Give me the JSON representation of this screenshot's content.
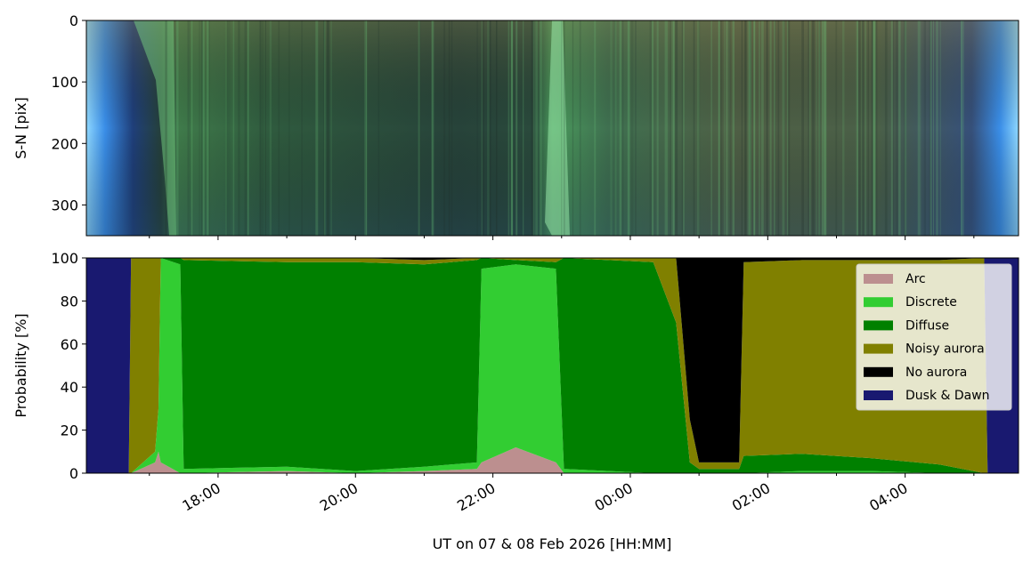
{
  "chart_data": [
    {
      "type": "heatmap",
      "title": "",
      "ylabel": "S-N [pix]",
      "ylim": [
        350,
        0
      ],
      "yticks": [
        0,
        100,
        200,
        300
      ],
      "xlim": [
        "2026-02-07T16:05",
        "2026-02-08T05:39"
      ],
      "description_of_colors": "keogram image: blue twilight at both edges, green aurora bands, brownish-olive tint 00:00-04:00"
    },
    {
      "type": "area",
      "stacked": true,
      "ylabel": "Probability [%]",
      "xlabel": "UT on 07 & 08 Feb 2026 [HH:MM]",
      "ylim": [
        0,
        100
      ],
      "yticks": [
        0,
        20,
        40,
        60,
        80,
        100
      ],
      "xlim": [
        "2026-02-07T16:05",
        "2026-02-08T05:39"
      ],
      "xticks": [
        "2026-02-07T18:00",
        "2026-02-07T20:00",
        "2026-02-07T22:00",
        "2026-02-08T00:00",
        "2026-02-08T02:00",
        "2026-02-08T04:00"
      ],
      "xticklabels": [
        "18:00",
        "20:00",
        "22:00",
        "00:00",
        "02:00",
        "04:00"
      ],
      "legend_placement": "upper right",
      "series": [
        {
          "name": "Arc",
          "color": "#bc8f8f"
        },
        {
          "name": "Discrete",
          "color": "#32cd32"
        },
        {
          "name": "Diffuse",
          "color": "#008000"
        },
        {
          "name": "Noisy aurora",
          "color": "#808000"
        },
        {
          "name": "No aurora",
          "color": "#000000"
        },
        {
          "name": "Dusk & Dawn",
          "color": "#191970"
        }
      ],
      "x": [
        "2026-02-07T16:05",
        "2026-02-07T16:42",
        "2026-02-07T16:44",
        "2026-02-07T17:05",
        "2026-02-07T17:08",
        "2026-02-07T17:10",
        "2026-02-07T17:27",
        "2026-02-07T17:30",
        "2026-02-07T19:00",
        "2026-02-07T20:00",
        "2026-02-07T21:00",
        "2026-02-07T21:46",
        "2026-02-07T21:50",
        "2026-02-07T22:20",
        "2026-02-07T22:55",
        "2026-02-07T23:02",
        "2026-02-08T00:20",
        "2026-02-08T00:40",
        "2026-02-08T00:52",
        "2026-02-08T01:00",
        "2026-02-08T01:35",
        "2026-02-08T01:39",
        "2026-02-08T02:30",
        "2026-02-08T03:30",
        "2026-02-08T04:30",
        "2026-02-08T05:09",
        "2026-02-08T05:12",
        "2026-02-08T05:39"
      ],
      "values": [
        [
          0,
          0,
          0,
          0,
          0,
          100
        ],
        [
          0,
          0,
          0,
          0,
          0,
          100
        ],
        [
          0,
          0,
          0,
          100,
          0,
          0
        ],
        [
          5,
          5,
          0,
          90,
          0,
          0
        ],
        [
          10,
          20,
          0,
          70,
          0,
          0
        ],
        [
          5,
          95,
          0,
          0,
          0,
          0
        ],
        [
          0,
          97,
          3,
          0,
          0,
          0
        ],
        [
          0,
          2,
          97,
          1,
          0,
          0
        ],
        [
          1,
          2,
          95,
          2,
          0,
          0
        ],
        [
          0,
          1,
          97,
          2,
          0,
          0
        ],
        [
          1,
          2,
          94,
          2,
          1,
          0
        ],
        [
          2,
          3,
          94,
          1,
          0,
          0
        ],
        [
          5,
          90,
          5,
          0,
          0,
          0
        ],
        [
          12,
          85,
          2,
          1,
          0,
          0
        ],
        [
          5,
          90,
          3,
          2,
          0,
          0
        ],
        [
          0,
          2,
          98,
          0,
          0,
          0
        ],
        [
          0,
          0,
          98,
          2,
          0,
          0
        ],
        [
          0,
          0,
          70,
          30,
          0,
          0
        ],
        [
          0,
          0,
          5,
          20,
          75,
          0
        ],
        [
          0,
          0,
          2,
          3,
          95,
          0
        ],
        [
          0,
          0,
          2,
          3,
          95,
          0
        ],
        [
          0,
          0,
          8,
          90,
          2,
          0
        ],
        [
          0,
          1,
          8,
          90,
          1,
          0
        ],
        [
          0,
          1,
          6,
          92,
          1,
          0
        ],
        [
          0,
          0,
          4,
          95,
          1,
          0
        ],
        [
          0,
          0,
          0,
          100,
          0,
          0
        ],
        [
          0,
          0,
          0,
          0,
          0,
          100
        ],
        [
          0,
          0,
          0,
          0,
          0,
          100
        ]
      ]
    }
  ]
}
